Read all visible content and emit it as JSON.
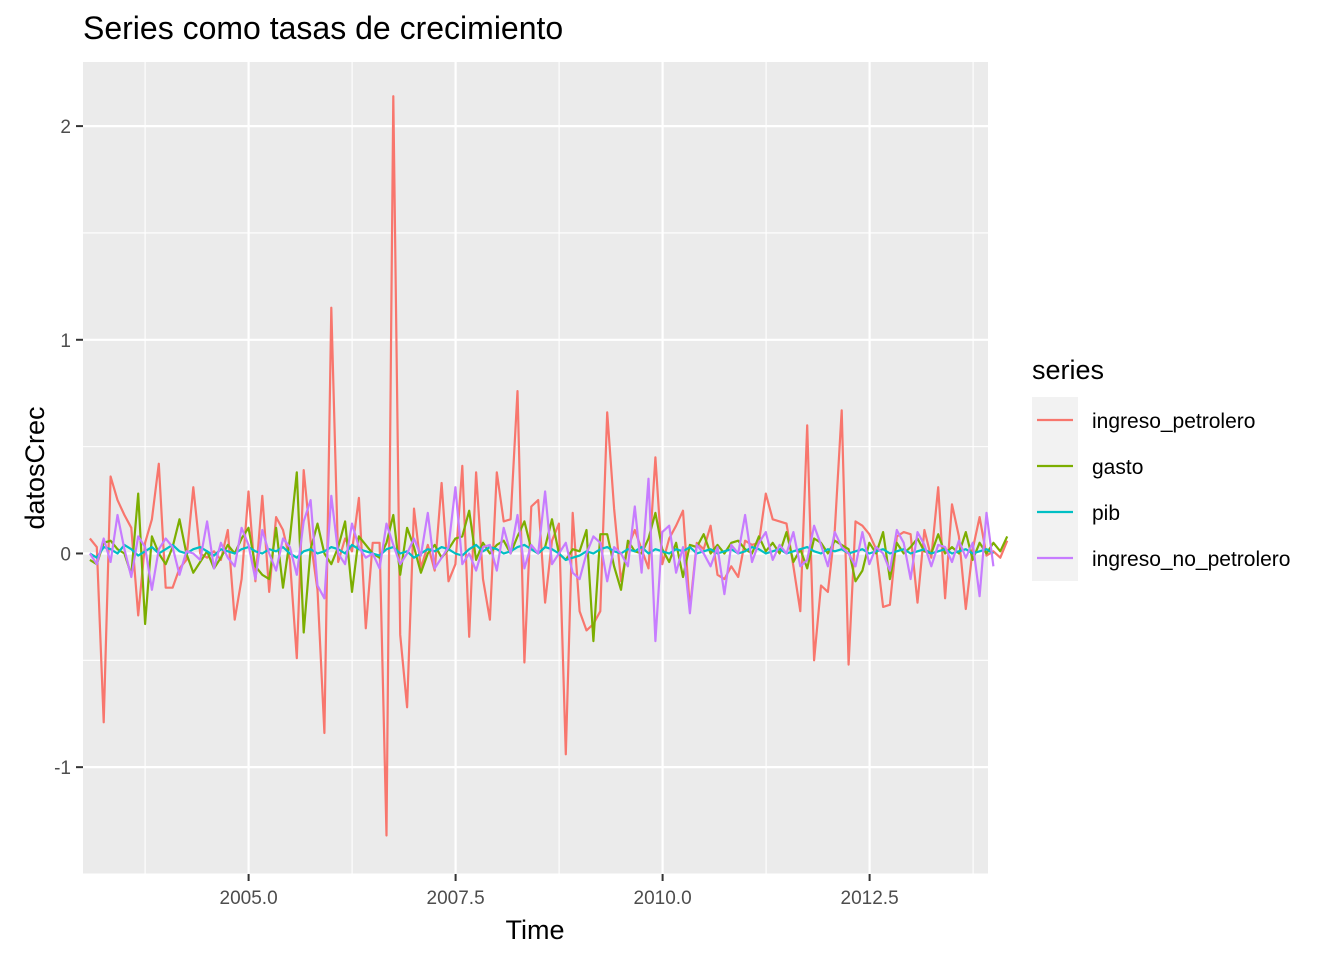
{
  "chart_data": {
    "type": "line",
    "title": "Series como tasas de crecimiento",
    "xlabel": "Time",
    "ylabel": "datosCrec",
    "xlim": [
      2003.0,
      2013.93
    ],
    "ylim": [
      -1.5,
      2.3
    ],
    "x_ticks": [
      2005.0,
      2007.5,
      2010.0,
      2012.5
    ],
    "x_tick_labels": [
      "2005.0",
      "2007.5",
      "2010.0",
      "2012.5"
    ],
    "y_ticks": [
      -1,
      0,
      1,
      2
    ],
    "y_tick_labels": [
      "-1",
      "0",
      "1",
      "2"
    ],
    "grid": true,
    "legend": {
      "title": "series",
      "placement": "right"
    },
    "x_start": 2003.083,
    "x_step": 0.0833,
    "series": [
      {
        "name": "ingreso_petrolero",
        "color": "#F8766D",
        "values": [
          0.07,
          0.03,
          -0.79,
          0.36,
          0.25,
          0.18,
          0.12,
          -0.29,
          0.05,
          0.16,
          0.42,
          -0.16,
          -0.16,
          -0.07,
          -0.03,
          0.31,
          0.0,
          -0.02,
          0.01,
          -0.03,
          0.11,
          -0.31,
          -0.12,
          0.29,
          -0.13,
          0.27,
          -0.18,
          0.17,
          0.11,
          -0.03,
          -0.49,
          0.39,
          0.06,
          -0.17,
          -0.84,
          1.15,
          -0.04,
          0.07,
          0.01,
          0.26,
          -0.35,
          0.05,
          0.05,
          -1.32,
          2.14,
          -0.38,
          -0.72,
          0.21,
          -0.07,
          0.04,
          -0.08,
          0.33,
          -0.13,
          -0.05,
          0.41,
          -0.39,
          0.38,
          -0.12,
          -0.31,
          0.38,
          0.15,
          0.16,
          0.76,
          -0.51,
          0.22,
          0.25,
          -0.23,
          0.06,
          0.14,
          -0.94,
          0.19,
          -0.27,
          -0.36,
          -0.33,
          -0.27,
          0.66,
          0.21,
          -0.13,
          0.03,
          0.11,
          0.02,
          -0.07,
          0.45,
          -0.05,
          0.07,
          0.13,
          0.2,
          -0.26,
          0.05,
          0.02,
          0.13,
          -0.1,
          -0.12,
          -0.06,
          -0.11,
          0.06,
          0.04,
          0.05,
          0.28,
          0.16,
          0.15,
          0.14,
          -0.06,
          -0.27,
          0.6,
          -0.5,
          -0.15,
          -0.18,
          0.11,
          0.67,
          -0.52,
          0.15,
          0.13,
          0.09,
          0.02,
          -0.25,
          -0.24,
          0.08,
          0.1,
          0.09,
          -0.23,
          0.11,
          -0.02,
          0.31,
          -0.21,
          0.23,
          0.08,
          -0.26,
          0.02,
          0.17,
          -0.01,
          0.01,
          -0.02,
          0.06
        ]
      },
      {
        "name": "gasto",
        "color": "#7CAE00",
        "values": [
          -0.03,
          -0.05,
          0.05,
          0.06,
          0.02,
          0.0,
          -0.1,
          0.28,
          -0.33,
          0.08,
          0.0,
          -0.05,
          0.03,
          0.16,
          0.0,
          -0.09,
          -0.04,
          0.01,
          -0.07,
          -0.02,
          0.04,
          0.0,
          0.07,
          0.12,
          -0.06,
          -0.1,
          -0.12,
          0.12,
          -0.16,
          0.07,
          0.38,
          -0.37,
          0.02,
          0.14,
          0.0,
          -0.05,
          0.03,
          0.15,
          -0.18,
          0.08,
          0.04,
          0.0,
          -0.02,
          0.05,
          0.18,
          -0.1,
          0.12,
          0.03,
          -0.09,
          0.0,
          0.04,
          -0.02,
          0.02,
          0.07,
          0.08,
          0.2,
          -0.03,
          0.05,
          0.0,
          0.04,
          0.06,
          0.0,
          0.08,
          0.15,
          0.02,
          0.0,
          0.03,
          0.16,
          0.0,
          -0.03,
          0.02,
          0.01,
          0.11,
          -0.41,
          0.09,
          0.09,
          -0.06,
          -0.17,
          0.06,
          0.01,
          0.0,
          0.07,
          0.19,
          0.02,
          -0.04,
          0.05,
          -0.11,
          0.04,
          0.03,
          0.09,
          0.0,
          0.04,
          0.0,
          0.05,
          0.06,
          0.02,
          0.0,
          0.08,
          0.01,
          0.05,
          0.0,
          0.1,
          -0.04,
          0.02,
          -0.07,
          0.07,
          0.05,
          0.0,
          0.06,
          0.04,
          0.02,
          -0.13,
          -0.08,
          0.05,
          0.0,
          0.1,
          -0.12,
          0.05,
          0.0,
          0.03,
          0.07,
          0.01,
          0.0,
          0.09,
          0.0,
          0.03,
          0.0,
          0.1,
          -0.03,
          0.05,
          0.0,
          0.05,
          0.01,
          0.08
        ]
      },
      {
        "name": "pib",
        "color": "#00BFC4",
        "values": [
          0.0,
          -0.02,
          0.03,
          0.02,
          0.0,
          0.04,
          0.02,
          -0.01,
          0.01,
          0.03,
          0.0,
          0.02,
          0.04,
          0.01,
          0.0,
          0.02,
          0.03,
          0.01,
          -0.01,
          0.02,
          0.01,
          0.0,
          0.02,
          0.03,
          0.01,
          0.0,
          0.02,
          0.01,
          0.03,
          0.0,
          -0.02,
          0.01,
          0.02,
          0.0,
          0.01,
          0.03,
          0.02,
          0.0,
          0.04,
          0.02,
          0.01,
          0.0,
          -0.01,
          0.02,
          0.03,
          0.0,
          0.01,
          -0.02,
          0.0,
          0.02,
          0.01,
          0.03,
          0.02,
          0.0,
          -0.01,
          0.02,
          0.04,
          0.01,
          0.03,
          0.02,
          0.0,
          0.01,
          0.03,
          0.04,
          0.02,
          0.0,
          0.03,
          0.02,
          0.0,
          -0.03,
          -0.02,
          -0.01,
          0.01,
          0.0,
          0.02,
          0.03,
          0.01,
          0.0,
          0.02,
          0.01,
          0.03,
          0.0,
          0.02,
          0.01,
          0.0,
          0.02,
          0.01,
          0.03,
          0.0,
          0.01,
          0.02,
          0.0,
          0.01,
          0.02,
          0.0,
          0.01,
          0.03,
          0.02,
          0.0,
          0.01,
          0.02,
          0.0,
          0.01,
          0.02,
          0.03,
          0.01,
          0.0,
          0.02,
          0.01,
          0.02,
          0.0,
          0.01,
          0.02,
          0.0,
          0.01,
          0.02,
          0.0,
          0.01,
          0.02,
          0.0,
          0.01,
          0.02,
          0.0,
          0.01,
          0.02,
          0.0,
          0.01,
          0.02,
          0.0,
          0.01,
          0.02,
          0.0
        ]
      },
      {
        "name": "ingreso_no_petrolero",
        "color": "#C77CFF",
        "values": [
          0.0,
          -0.05,
          0.07,
          -0.04,
          0.18,
          0.02,
          -0.11,
          0.08,
          0.03,
          -0.17,
          0.02,
          0.07,
          0.03,
          -0.1,
          0.01,
          0.0,
          -0.03,
          0.15,
          -0.07,
          0.05,
          -0.02,
          -0.06,
          0.12,
          0.04,
          -0.12,
          0.11,
          0.0,
          -0.08,
          0.07,
          0.03,
          -0.1,
          0.15,
          0.25,
          -0.15,
          -0.21,
          0.27,
          0.0,
          -0.05,
          0.14,
          0.03,
          -0.02,
          0.0,
          -0.07,
          0.14,
          0.04,
          -0.05,
          0.0,
          0.07,
          -0.01,
          0.19,
          -0.07,
          -0.02,
          0.03,
          0.31,
          -0.05,
          0.0,
          -0.08,
          0.03,
          0.04,
          -0.08,
          0.12,
          0.0,
          0.18,
          -0.07,
          0.04,
          0.0,
          0.29,
          -0.05,
          0.0,
          0.05,
          -0.09,
          -0.12,
          0.0,
          0.08,
          0.05,
          -0.13,
          0.03,
          0.0,
          -0.06,
          0.22,
          -0.09,
          0.35,
          -0.41,
          0.1,
          0.13,
          -0.09,
          0.03,
          -0.28,
          0.04,
          0.0,
          -0.06,
          0.03,
          -0.19,
          0.04,
          0.0,
          0.18,
          -0.04,
          0.05,
          0.1,
          -0.03,
          0.04,
          0.0,
          0.1,
          -0.06,
          -0.03,
          0.13,
          0.04,
          -0.06,
          0.1,
          0.03,
          0.0,
          -0.06,
          0.1,
          -0.05,
          0.03,
          0.0,
          -0.08,
          0.11,
          0.05,
          -0.12,
          0.1,
          0.04,
          -0.06,
          0.04,
          0.03,
          -0.04,
          0.06,
          -0.02,
          0.05,
          -0.2,
          0.19,
          -0.06
        ]
      }
    ]
  }
}
